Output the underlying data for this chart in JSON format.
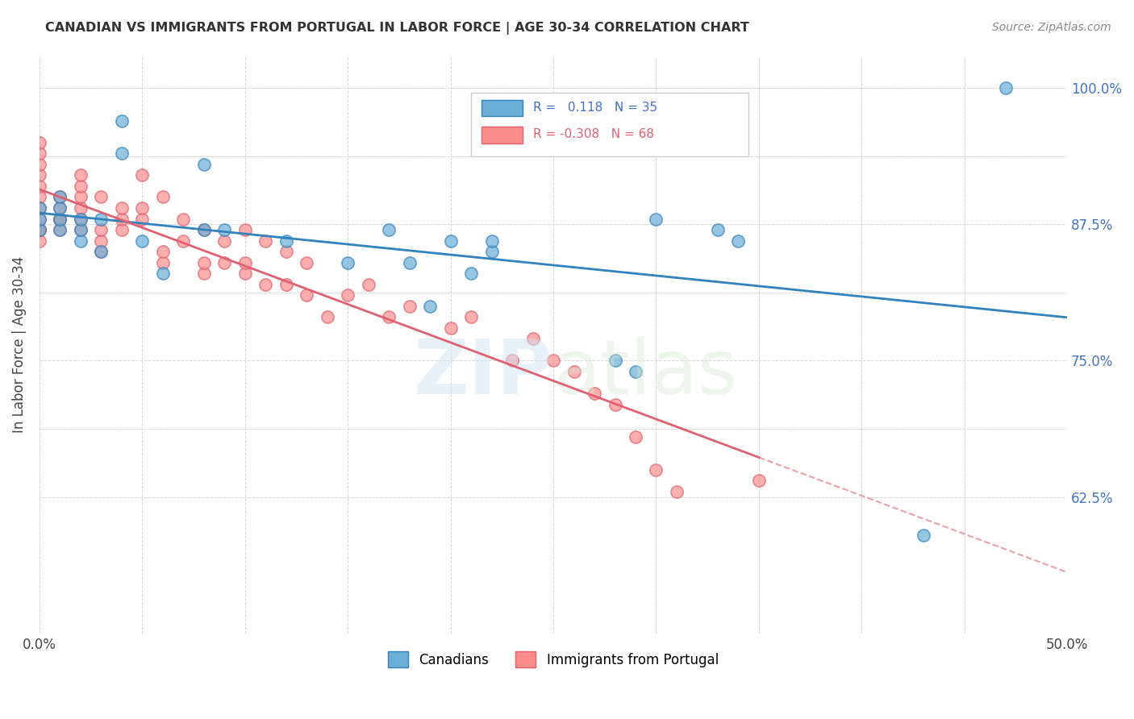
{
  "title": "CANADIAN VS IMMIGRANTS FROM PORTUGAL IN LABOR FORCE | AGE 30-34 CORRELATION CHART",
  "source": "Source: ZipAtlas.com",
  "xlabel": "",
  "ylabel": "In Labor Force | Age 30-34",
  "xlim": [
    0.0,
    0.5
  ],
  "ylim": [
    0.5,
    1.03
  ],
  "ytick_labels": [
    "",
    "62.5%",
    "",
    "75.0%",
    "",
    "87.5%",
    "",
    "100.0%"
  ],
  "ytick_vals": [
    0.5,
    0.625,
    0.6875,
    0.75,
    0.8125,
    0.875,
    0.9375,
    1.0
  ],
  "xtick_labels": [
    "0.0%",
    "",
    "",
    "",
    "",
    "",
    "",
    "",
    "",
    "",
    "50.0%"
  ],
  "xtick_vals": [
    0.0,
    0.05,
    0.1,
    0.15,
    0.2,
    0.25,
    0.3,
    0.35,
    0.4,
    0.45,
    0.5
  ],
  "legend_labels": [
    "Canadians",
    "Immigrants from Portugal"
  ],
  "R_canadian": 0.118,
  "N_canadian": 35,
  "R_portugal": -0.308,
  "N_portugal": 68,
  "blue_color": "#6baed6",
  "pink_color": "#fc8d8d",
  "line_blue": "#3182bd",
  "line_pink": "#e06070",
  "watermark": "ZIPatlas",
  "canadian_x": [
    0.0,
    0.0,
    0.0,
    0.01,
    0.01,
    0.01,
    0.01,
    0.02,
    0.02,
    0.02,
    0.03,
    0.03,
    0.04,
    0.04,
    0.05,
    0.06,
    0.08,
    0.08,
    0.09,
    0.12,
    0.15,
    0.17,
    0.18,
    0.19,
    0.2,
    0.21,
    0.22,
    0.22,
    0.28,
    0.29,
    0.3,
    0.33,
    0.34,
    0.43,
    0.47
  ],
  "canadian_y": [
    0.87,
    0.88,
    0.89,
    0.87,
    0.88,
    0.89,
    0.9,
    0.86,
    0.87,
    0.88,
    0.85,
    0.88,
    0.94,
    0.97,
    0.86,
    0.83,
    0.93,
    0.87,
    0.87,
    0.86,
    0.84,
    0.87,
    0.84,
    0.8,
    0.86,
    0.83,
    0.85,
    0.86,
    0.75,
    0.74,
    0.88,
    0.87,
    0.86,
    0.59,
    1.0
  ],
  "portugal_x": [
    0.0,
    0.0,
    0.0,
    0.0,
    0.0,
    0.0,
    0.0,
    0.0,
    0.0,
    0.0,
    0.0,
    0.01,
    0.01,
    0.01,
    0.01,
    0.01,
    0.02,
    0.02,
    0.02,
    0.02,
    0.02,
    0.02,
    0.03,
    0.03,
    0.03,
    0.03,
    0.04,
    0.04,
    0.04,
    0.05,
    0.05,
    0.05,
    0.06,
    0.06,
    0.06,
    0.07,
    0.07,
    0.08,
    0.08,
    0.08,
    0.09,
    0.09,
    0.1,
    0.1,
    0.1,
    0.11,
    0.11,
    0.12,
    0.12,
    0.13,
    0.13,
    0.14,
    0.15,
    0.16,
    0.17,
    0.18,
    0.2,
    0.21,
    0.23,
    0.24,
    0.25,
    0.26,
    0.27,
    0.28,
    0.29,
    0.3,
    0.31,
    0.35
  ],
  "portugal_y": [
    0.86,
    0.87,
    0.87,
    0.88,
    0.89,
    0.9,
    0.91,
    0.92,
    0.93,
    0.94,
    0.95,
    0.87,
    0.88,
    0.88,
    0.89,
    0.9,
    0.87,
    0.88,
    0.89,
    0.9,
    0.91,
    0.92,
    0.85,
    0.86,
    0.87,
    0.9,
    0.87,
    0.88,
    0.89,
    0.88,
    0.89,
    0.92,
    0.84,
    0.85,
    0.9,
    0.86,
    0.88,
    0.83,
    0.84,
    0.87,
    0.84,
    0.86,
    0.83,
    0.84,
    0.87,
    0.82,
    0.86,
    0.82,
    0.85,
    0.81,
    0.84,
    0.79,
    0.81,
    0.82,
    0.79,
    0.8,
    0.78,
    0.79,
    0.75,
    0.77,
    0.75,
    0.74,
    0.72,
    0.71,
    0.68,
    0.65,
    0.63,
    0.64
  ]
}
